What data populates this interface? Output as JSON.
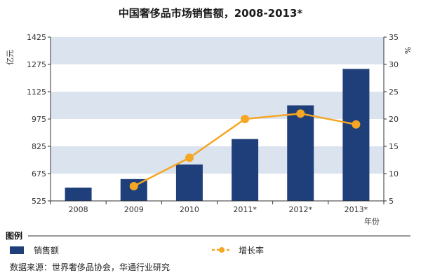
{
  "chart_data": {
    "type": "bar",
    "title": "中国奢侈品市场销售额，2008-2013*",
    "categories": [
      "2008",
      "2009",
      "2010",
      "2011*",
      "2012*",
      "2013*"
    ],
    "series": [
      {
        "name": "销售额",
        "type": "bar",
        "axis": "left",
        "values": [
          598,
          645,
          725,
          865,
          1050,
          1250
        ],
        "color": "#1f3f7a"
      },
      {
        "name": "增长率",
        "type": "line",
        "axis": "right",
        "values": [
          null,
          7.7,
          12.9,
          20.0,
          21.0,
          19.0
        ],
        "color": "#f5a623"
      }
    ],
    "left_axis": {
      "unit_label": "亿元",
      "ylim": [
        525,
        1425
      ],
      "ticks": [
        525,
        675,
        825,
        975,
        1125,
        1275,
        1425
      ]
    },
    "right_axis": {
      "unit_label": "%",
      "ylim": [
        5,
        35
      ],
      "ticks": [
        5,
        10,
        15,
        20,
        25,
        30,
        35
      ]
    },
    "xlabel": "年份",
    "grid": "alternating horizontal bands"
  },
  "legend": {
    "heading": "图例",
    "bar_label": "销售额",
    "line_label": "增长率"
  },
  "source_text": "数据来源：世界奢侈品协会，华通行业研究",
  "colors": {
    "bar": "#1f3f7a",
    "line": "#f5a623",
    "band": "#dbe3ef"
  }
}
